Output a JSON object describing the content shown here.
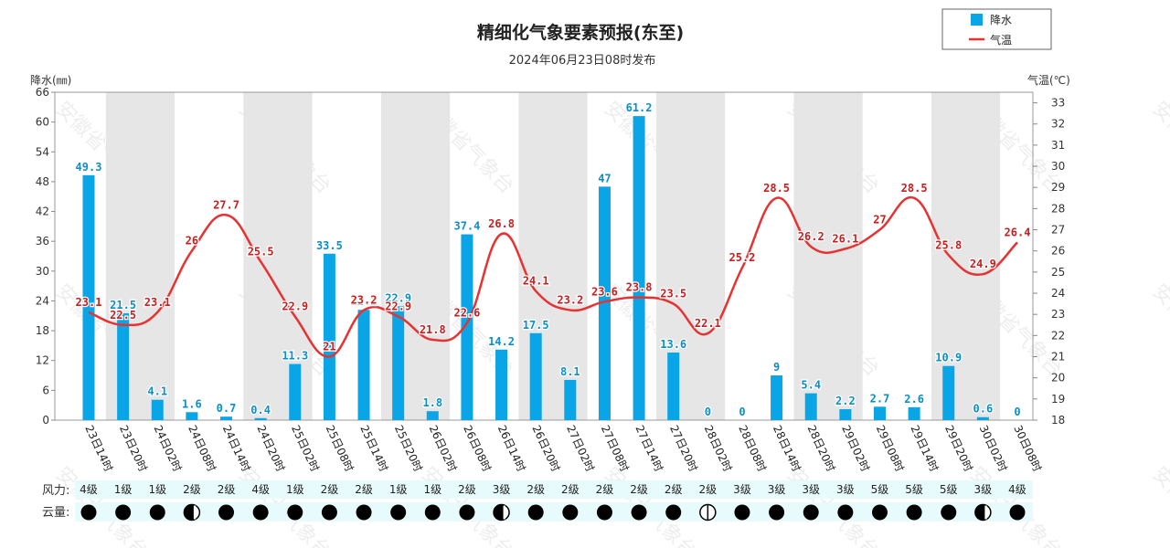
{
  "chart_data": {
    "type": "bar+line",
    "title": "精细化气象要素预报(东至)",
    "subtitle": "2024年06月23日08时发布",
    "ylabel_left": "降水(㎜)",
    "ylabel_right": "气温(℃)",
    "ylim_left": [
      0,
      66
    ],
    "ylim_right": [
      18,
      33.5
    ],
    "yticks_left": [
      0,
      6,
      12,
      18,
      24,
      30,
      36,
      42,
      48,
      54,
      60,
      66
    ],
    "yticks_right": [
      18,
      19,
      20,
      21,
      22,
      23,
      24,
      25,
      26,
      27,
      28,
      29,
      30,
      31,
      32,
      33
    ],
    "legend": {
      "position": "top-right",
      "entries": [
        "降水",
        "气温"
      ]
    },
    "categories": [
      "23日14时",
      "23日20时",
      "24日02时",
      "24日08时",
      "24日14时",
      "24日20时",
      "25日02时",
      "25日08时",
      "25日14时",
      "25日20时",
      "26日02时",
      "26日08时",
      "26日14时",
      "26日20时",
      "27日02时",
      "27日08时",
      "27日14时",
      "27日20时",
      "28日02时",
      "28日08时",
      "28日14时",
      "28日20时",
      "29日02时",
      "29日08时",
      "29日14时",
      "29日20时",
      "30日02时",
      "30日08时"
    ],
    "precip_labels": [
      "49.3",
      "21.5",
      "4.1",
      "1.6",
      "0.7",
      "0.4",
      "11.3",
      "33.5",
      "22.2",
      "22.9",
      "1.8",
      "37.4",
      "14.2",
      "17.5",
      "8.1",
      "47",
      "61.2",
      "13.6",
      "0",
      "0",
      "9",
      "5.4",
      "2.2",
      "2.7",
      "2.6",
      "10.9",
      "0.6",
      "0"
    ],
    "precip_bars": [
      49.3,
      21.5,
      4.1,
      1.6,
      0.7,
      0.4,
      11.3,
      33.5,
      22.2,
      22.9,
      1.8,
      37.4,
      14.2,
      17.5,
      8.1,
      47,
      61.2,
      13.6,
      0,
      0,
      9,
      5.4,
      2.2,
      2.7,
      2.6,
      10.9,
      0.6,
      0
    ],
    "temp_labels": [
      "23.1",
      "22.5",
      "23.1",
      "26",
      "27.7",
      "25.5",
      "22.9",
      "21",
      "23.2",
      "22.9",
      "21.8",
      "22.6",
      "26.8",
      "24.1",
      "23.2",
      "23.6",
      "23.8",
      "23.5",
      "22.1",
      "25.2",
      "28.5",
      "26.2",
      "26.1",
      "27",
      "28.5",
      "25.8",
      "24.9",
      "26.4"
    ],
    "temp_values": [
      23.1,
      22.5,
      23.1,
      26,
      27.7,
      25.5,
      22.9,
      21,
      23.2,
      22.9,
      21.8,
      22.6,
      26.8,
      24.1,
      23.2,
      23.6,
      23.8,
      23.5,
      22.1,
      25.2,
      28.5,
      26.2,
      26.1,
      27,
      28.5,
      25.8,
      24.9,
      26.4
    ],
    "shaded_bands_from_index": [
      1,
      5,
      9,
      13,
      17,
      21,
      25
    ],
    "colors": {
      "precip": "#0aa5e6",
      "precip_label": "#0a8fc7",
      "temp": "#e83232",
      "temp_label": "#c81e1e",
      "band": "#e6e6e6",
      "row_bg": "#e8fbfc"
    },
    "wind_label": "风力:",
    "wind": [
      "4级",
      "1级",
      "1级",
      "2级",
      "2级",
      "4级",
      "1级",
      "2级",
      "2级",
      "1级",
      "1级",
      "2级",
      "3级",
      "2级",
      "2级",
      "2级",
      "2级",
      "2级",
      "2级",
      "3级",
      "3级",
      "3级",
      "3级",
      "5级",
      "5级",
      "5级",
      "3级",
      "4级"
    ],
    "cloud_label": "云量:",
    "cloud": [
      "full",
      "full",
      "full",
      "three-quarter",
      "full",
      "full",
      "full",
      "full",
      "full",
      "full",
      "full",
      "full",
      "three-quarter",
      "full",
      "full",
      "full",
      "full",
      "full",
      "half",
      "full",
      "full",
      "full",
      "full",
      "full",
      "full",
      "full",
      "three-quarter",
      "full"
    ]
  },
  "watermark_text": "安徽省气象台"
}
